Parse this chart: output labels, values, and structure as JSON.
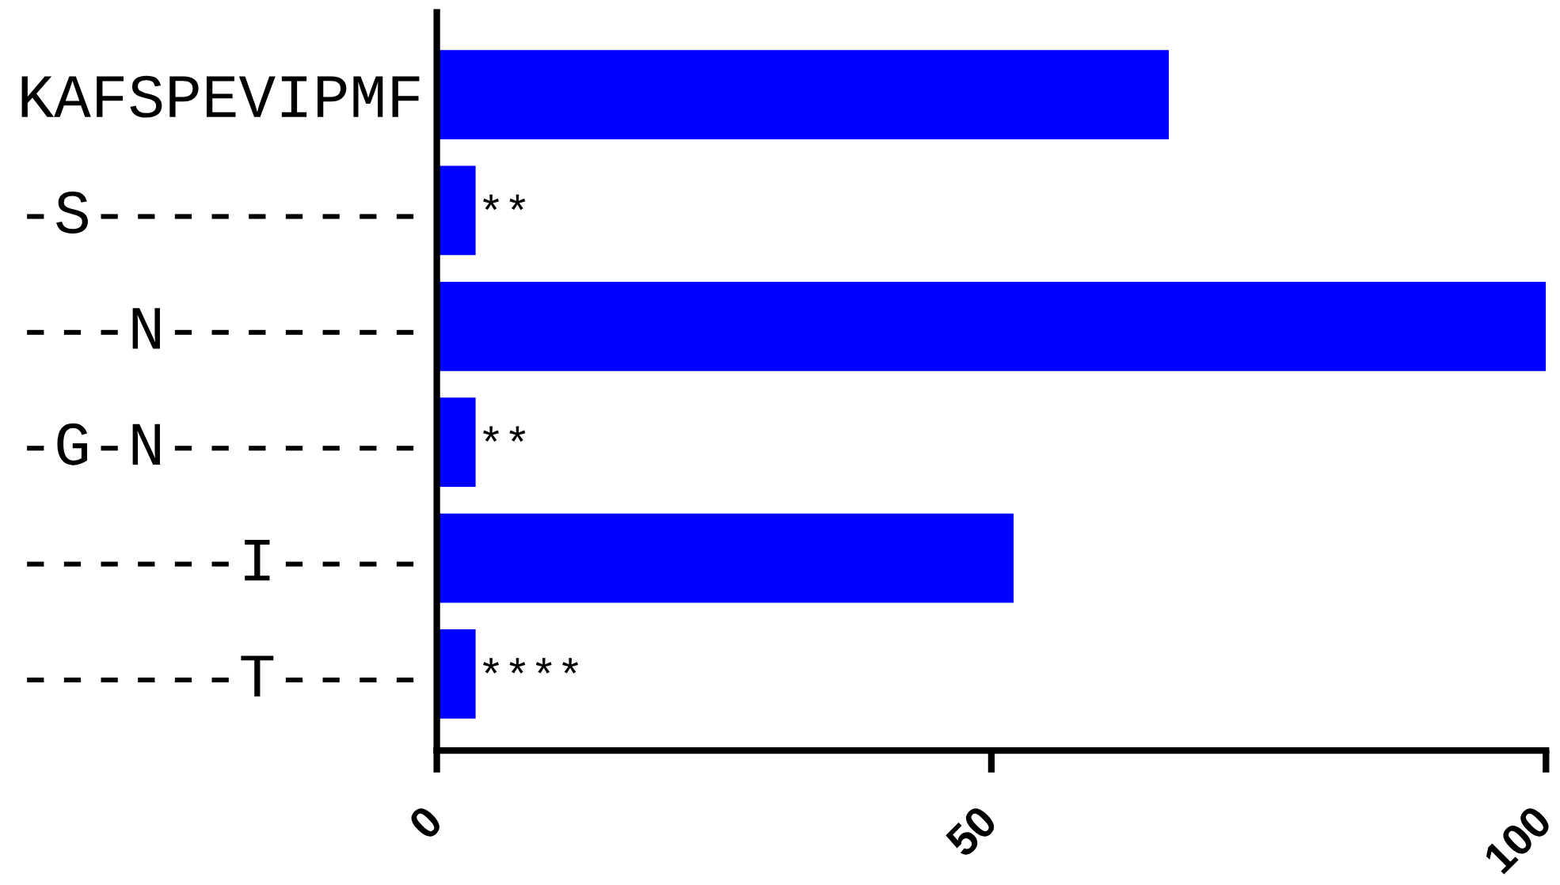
{
  "chart_data": {
    "type": "bar",
    "orientation": "horizontal",
    "categories": [
      "KAFSPEVIPMF",
      "-S---------",
      "---N-------",
      "-G-N-------",
      "------I----",
      "------T----"
    ],
    "values": [
      66,
      3.5,
      100,
      3.5,
      52,
      3.5
    ],
    "color": "#0000ff",
    "value_labels": [
      null,
      "**",
      null,
      "**",
      null,
      "****"
    ],
    "xlim": [
      0,
      100
    ],
    "xticks": [
      0,
      50,
      100
    ],
    "grid": false,
    "legend": false
  }
}
